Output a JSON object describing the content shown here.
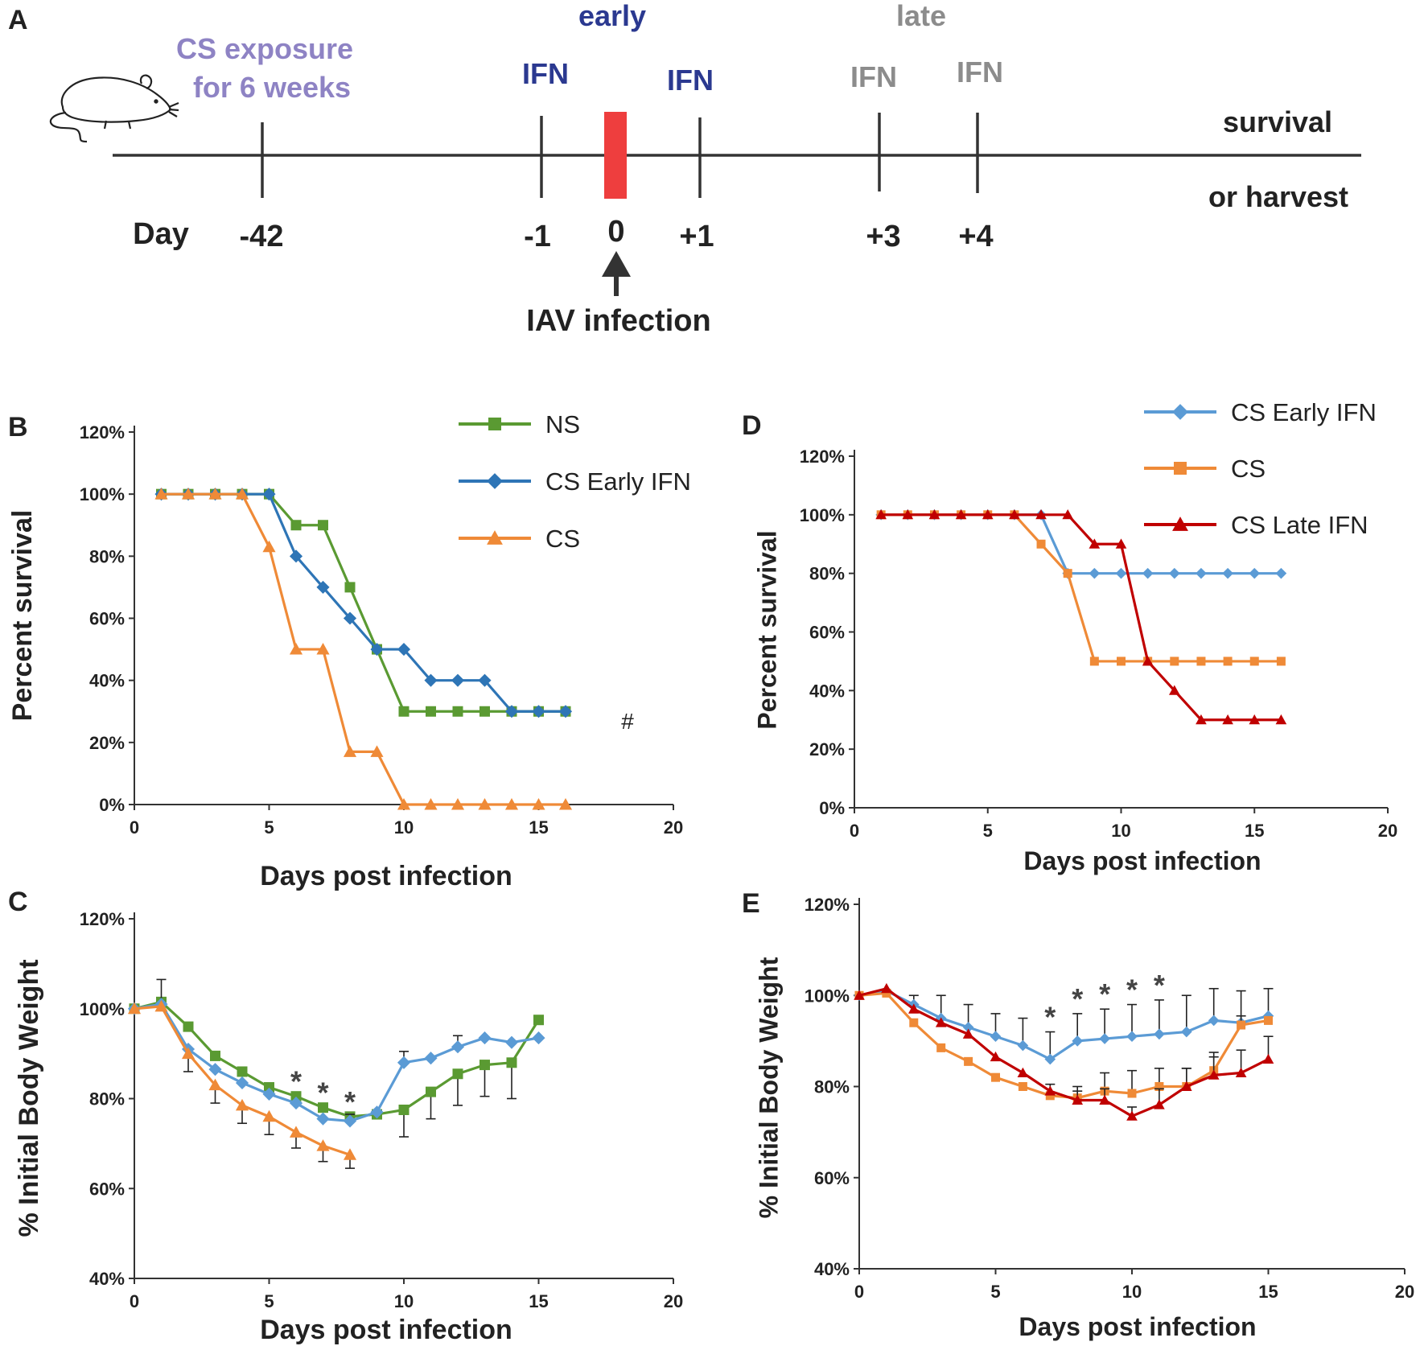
{
  "colors": {
    "green": "#5a9a32",
    "blue": "#2e75b6",
    "orange": "#ef8a37",
    "lightblue": "#5b9bd5",
    "darkred": "#c00000",
    "red_box": "#ee3e3e",
    "purple": "#8e83c4",
    "navy": "#2b3990",
    "grey": "#8c8c8c",
    "axis": "#333333",
    "text": "#222222"
  },
  "panel_a": {
    "label": "A",
    "exposure_line1": "CS exposure",
    "exposure_line2": "for 6 weeks",
    "early_label": "early",
    "late_label": "late",
    "ifn_label": "IFN",
    "outcome_line1": "survival",
    "outcome_line2": "or harvest",
    "day_word": "Day",
    "days": [
      "-42",
      "-1",
      "0",
      "+1",
      "+3",
      "+4"
    ],
    "infection_label": "IAV infection",
    "mouse_icon": "mouse-icon"
  },
  "chart_data": [
    {
      "id": "B",
      "label": "B",
      "type": "line",
      "title": "",
      "xlabel": "Days post infection",
      "ylabel": "Percent survival",
      "xlim": [
        0,
        20
      ],
      "ylim": [
        0,
        120
      ],
      "xticks": [
        "0",
        "5",
        "10",
        "15",
        "20"
      ],
      "yticks": [
        "0%",
        "20%",
        "40%",
        "60%",
        "80%",
        "100%",
        "120%"
      ],
      "x": [
        1,
        2,
        3,
        4,
        5,
        6,
        7,
        8,
        9,
        10,
        11,
        12,
        13,
        14,
        15,
        16
      ],
      "legend": [
        "NS",
        "CS Early IFN",
        "CS"
      ],
      "legend_position": "top-right",
      "annotations": [
        "#"
      ],
      "series": [
        {
          "name": "NS",
          "color": "green",
          "marker": "square",
          "values": [
            100,
            100,
            100,
            100,
            100,
            90,
            90,
            70,
            50,
            30,
            30,
            30,
            30,
            30,
            30,
            30
          ]
        },
        {
          "name": "CS Early IFN",
          "color": "blue",
          "marker": "diamond",
          "values": [
            100,
            100,
            100,
            100,
            100,
            80,
            70,
            60,
            50,
            50,
            40,
            40,
            40,
            30,
            30,
            30
          ]
        },
        {
          "name": "CS",
          "color": "orange",
          "marker": "triangle",
          "values": [
            100,
            100,
            100,
            100,
            83,
            50,
            50,
            17,
            17,
            0,
            0,
            0,
            0,
            0,
            0,
            0
          ]
        }
      ]
    },
    {
      "id": "C",
      "label": "C",
      "type": "line",
      "title": "",
      "xlabel": "Days post infection",
      "ylabel": "% Initial Body Weight",
      "xlim": [
        0,
        20
      ],
      "ylim": [
        40,
        120
      ],
      "xticks": [
        "0",
        "5",
        "10",
        "15",
        "20"
      ],
      "yticks": [
        "40%",
        "60%",
        "80%",
        "100%",
        "120%"
      ],
      "annotations": [
        "*",
        "*",
        "*"
      ],
      "annotation_x": [
        6,
        7,
        8
      ],
      "series": [
        {
          "name": "NS",
          "color": "green",
          "marker": "square",
          "x": [
            0,
            1,
            2,
            3,
            4,
            5,
            6,
            7,
            8,
            9,
            10,
            11,
            12,
            13,
            14,
            15
          ],
          "values": [
            100,
            101.5,
            96,
            89.5,
            86,
            82.5,
            80.5,
            78,
            76,
            76.5,
            77.5,
            81.5,
            85.5,
            87.5,
            88,
            97.5
          ],
          "err": [
            0,
            0,
            0,
            0,
            0,
            0,
            0,
            0,
            0,
            0,
            6,
            6,
            7,
            7,
            8,
            0
          ]
        },
        {
          "name": "CS Early IFN",
          "color": "lightblue",
          "marker": "diamond",
          "x": [
            0,
            1,
            2,
            3,
            4,
            5,
            6,
            7,
            8,
            9,
            10,
            11,
            12,
            13,
            14,
            15
          ],
          "values": [
            100,
            101,
            91,
            86.5,
            83.5,
            81,
            79,
            75.5,
            75,
            77,
            88,
            89,
            91.5,
            93.5,
            92.5,
            93.5
          ],
          "err": [
            0,
            5.5,
            0,
            0,
            0,
            0,
            0,
            0,
            1.5,
            0,
            2.5,
            0,
            2.5,
            0,
            0,
            0
          ]
        },
        {
          "name": "CS",
          "color": "orange",
          "marker": "triangle",
          "x": [
            0,
            1,
            2,
            3,
            4,
            5,
            6,
            7,
            8
          ],
          "values": [
            100,
            100.5,
            90,
            83,
            78.5,
            76,
            72.5,
            69.5,
            67.5
          ],
          "err": [
            0,
            0,
            4,
            4,
            4,
            4,
            3.5,
            3.5,
            3
          ]
        }
      ]
    },
    {
      "id": "D",
      "label": "D",
      "type": "line",
      "title": "",
      "xlabel": "Days post infection",
      "ylabel": "Percent survival",
      "xlim": [
        0,
        20
      ],
      "ylim": [
        0,
        120
      ],
      "xticks": [
        "0",
        "5",
        "10",
        "15",
        "20"
      ],
      "yticks": [
        "0%",
        "20%",
        "40%",
        "60%",
        "80%",
        "100%",
        "120%"
      ],
      "x": [
        1,
        2,
        3,
        4,
        5,
        6,
        7,
        8,
        9,
        10,
        11,
        12,
        13,
        14,
        15,
        16
      ],
      "legend": [
        "CS Early IFN",
        "CS",
        "CS Late IFN"
      ],
      "legend_position": "top-right",
      "series": [
        {
          "name": "CS Early IFN",
          "color": "lightblue",
          "marker": "diamond",
          "values": [
            100,
            100,
            100,
            100,
            100,
            100,
            100,
            80,
            80,
            80,
            80,
            80,
            80,
            80,
            80,
            80
          ]
        },
        {
          "name": "CS",
          "color": "orange",
          "marker": "square",
          "values": [
            100,
            100,
            100,
            100,
            100,
            100,
            90,
            80,
            50,
            50,
            50,
            50,
            50,
            50,
            50,
            50
          ]
        },
        {
          "name": "CS Late IFN",
          "color": "darkred",
          "marker": "triangle",
          "values": [
            100,
            100,
            100,
            100,
            100,
            100,
            100,
            100,
            90,
            90,
            50,
            40,
            30,
            30,
            30,
            30
          ]
        }
      ]
    },
    {
      "id": "E",
      "label": "E",
      "type": "line",
      "title": "",
      "xlabel": "Days post infection",
      "ylabel": "% Initial Body Weight",
      "xlim": [
        0,
        20
      ],
      "ylim": [
        40,
        120
      ],
      "xticks": [
        "0",
        "5",
        "10",
        "15",
        "20"
      ],
      "yticks": [
        "40%",
        "60%",
        "80%",
        "100%",
        "120%"
      ],
      "annotations": [
        "*",
        "*",
        "*",
        "*",
        "*"
      ],
      "annotation_x": [
        7,
        8,
        9,
        10,
        11
      ],
      "series": [
        {
          "name": "CS Early IFN",
          "color": "lightblue",
          "marker": "diamond",
          "x": [
            0,
            1,
            2,
            3,
            4,
            5,
            6,
            7,
            8,
            9,
            10,
            11,
            12,
            13,
            14,
            15
          ],
          "values": [
            100,
            101,
            98,
            95,
            93,
            91,
            89,
            86,
            90,
            90.5,
            91,
            91.5,
            92,
            94.5,
            94,
            95.5
          ],
          "err": [
            0,
            0,
            2,
            5,
            5,
            5,
            6,
            6,
            6,
            6.5,
            7,
            7.5,
            8,
            7,
            7,
            6
          ]
        },
        {
          "name": "CS",
          "color": "orange",
          "marker": "square",
          "x": [
            0,
            1,
            2,
            3,
            4,
            5,
            6,
            7,
            8,
            9,
            10,
            11,
            12,
            13,
            14,
            15
          ],
          "values": [
            100,
            100.5,
            94,
            88.5,
            85.5,
            82,
            80,
            78,
            77.5,
            79,
            78.5,
            80,
            80,
            83.5,
            93.5,
            94.5
          ],
          "err": [
            0,
            0,
            0,
            0,
            0,
            0,
            0,
            0,
            2.5,
            4,
            5,
            4,
            4,
            3,
            2,
            0
          ]
        },
        {
          "name": "CS Late IFN",
          "color": "darkred",
          "marker": "triangle",
          "x": [
            0,
            1,
            2,
            3,
            4,
            5,
            6,
            7,
            8,
            9,
            10,
            11,
            12,
            13,
            14,
            15
          ],
          "values": [
            100,
            101.5,
            97,
            94,
            91.5,
            86.5,
            83,
            79,
            77,
            77,
            73.5,
            76,
            80,
            82.5,
            83,
            86
          ],
          "err": [
            0,
            0,
            0,
            0,
            0,
            0,
            0,
            1.5,
            2,
            2.5,
            2,
            3.5,
            4,
            5,
            5,
            5
          ]
        }
      ]
    }
  ]
}
